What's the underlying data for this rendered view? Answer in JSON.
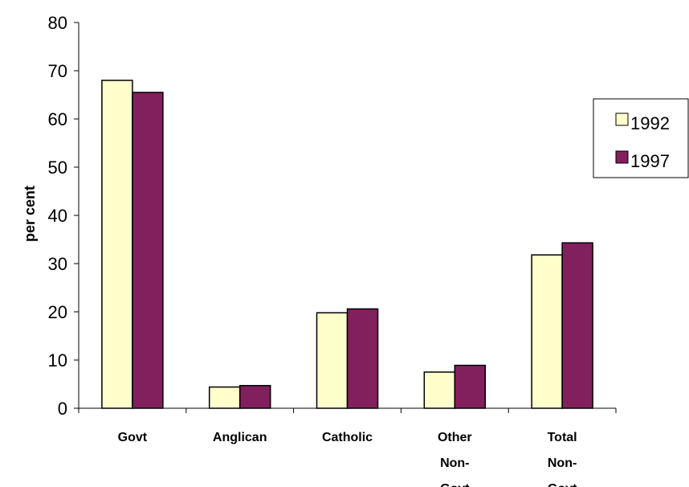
{
  "chart_data": {
    "type": "bar",
    "title": "",
    "xlabel": "",
    "ylabel": "per cent",
    "ylim": [
      0,
      80
    ],
    "yticks": [
      0,
      10,
      20,
      30,
      40,
      50,
      60,
      70,
      80
    ],
    "categories": [
      "Govt",
      "Anglican",
      "Catholic",
      "Other Non-Govt",
      "Total Non-Govt"
    ],
    "category_lines": [
      [
        "Govt"
      ],
      [
        "Anglican"
      ],
      [
        "Catholic"
      ],
      [
        "Other",
        "Non-",
        "Govt"
      ],
      [
        "Total",
        "Non-",
        "Govt"
      ]
    ],
    "series": [
      {
        "name": "1992",
        "color": "#FFFFCC",
        "values": [
          68,
          4.4,
          19.8,
          7.5,
          31.8
        ]
      },
      {
        "name": "1997",
        "color": "#82205E",
        "values": [
          65.5,
          4.7,
          20.6,
          8.9,
          34.3
        ]
      }
    ],
    "grid": false,
    "legend_position": "right"
  }
}
